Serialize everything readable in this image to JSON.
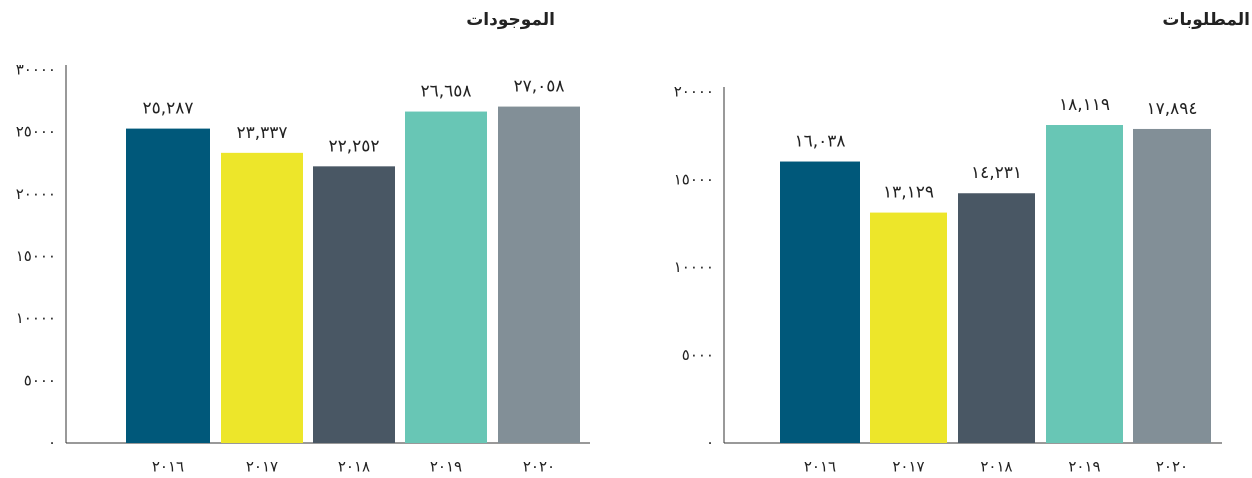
{
  "chart_data": [
    {
      "type": "bar",
      "title": "الموجودات",
      "categories": [
        "٢٠١٦",
        "٢٠١٧",
        "٢٠١٨",
        "٢٠١٩",
        "٢٠٢٠"
      ],
      "values": [
        25287,
        23337,
        22252,
        26658,
        27058
      ],
      "value_labels": [
        "٢٥,٢٨٧",
        "٢٣,٣٣٧",
        "٢٢,٢٥٢",
        "٢٦,٦٥٨",
        "٢٧,٠٥٨"
      ],
      "colors": [
        "#00587a",
        "#ede62a",
        "#495764",
        "#68c6b5",
        "#828f97"
      ],
      "ylim": [
        0,
        30000
      ],
      "yticks": [
        {
          "value": 0,
          "label": "٠"
        },
        {
          "value": 5000,
          "label": "٥٠٠٠"
        },
        {
          "value": 10000,
          "label": "١٠٠٠٠"
        },
        {
          "value": 15000,
          "label": "١٥٠٠٠"
        },
        {
          "value": 20000,
          "label": "٢٠٠٠٠"
        },
        {
          "value": 25000,
          "label": "٢٥٠٠٠"
        },
        {
          "value": 30000,
          "label": "٣٠٠٠٠"
        }
      ]
    },
    {
      "type": "bar",
      "title": "المطلوبات",
      "categories": [
        "٢٠١٦",
        "٢٠١٧",
        "٢٠١٨",
        "٢٠١٩",
        "٢٠٢٠"
      ],
      "values": [
        16038,
        13129,
        14231,
        18119,
        17894
      ],
      "value_labels": [
        "١٦,٠٣٨",
        "١٣,١٢٩",
        "١٤,٢٣١",
        "١٨,١١٩",
        "١٧,٨٩٤"
      ],
      "colors": [
        "#00587a",
        "#ede62a",
        "#495764",
        "#68c6b5",
        "#828f97"
      ],
      "ylim": [
        0,
        20000
      ],
      "yticks": [
        {
          "value": 0,
          "label": "٠"
        },
        {
          "value": 5000,
          "label": "٥٠٠٠"
        },
        {
          "value": 10000,
          "label": "١٠٠٠٠"
        },
        {
          "value": 15000,
          "label": "١٥٠٠٠"
        },
        {
          "value": 20000,
          "label": "٢٠٠٠٠"
        }
      ]
    }
  ]
}
